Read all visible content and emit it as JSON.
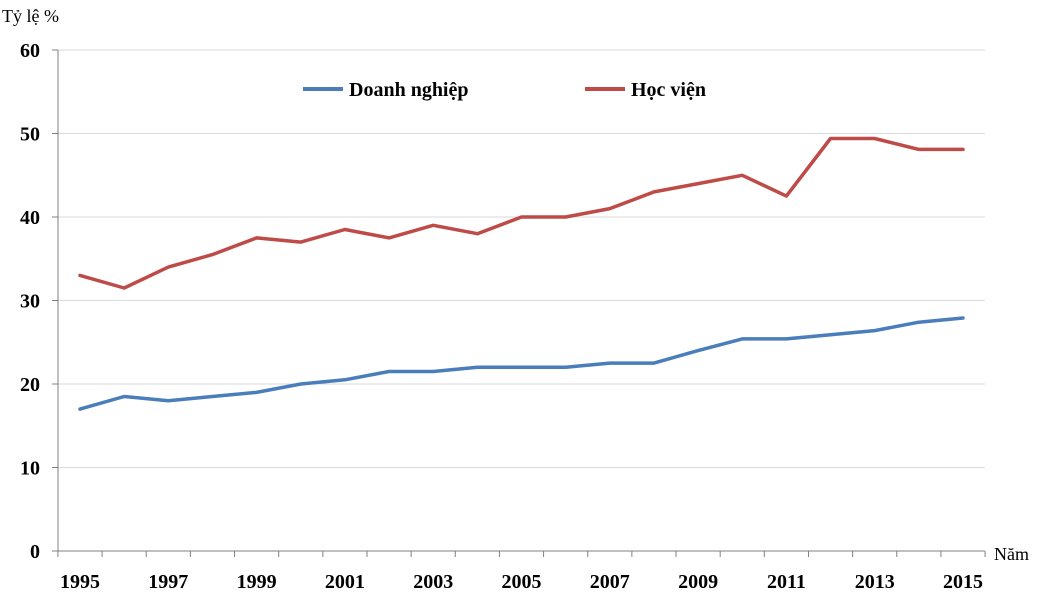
{
  "chart_data": {
    "type": "line",
    "title": "",
    "ylabel": "Tỷ lệ %",
    "xlabel": "Năm",
    "ylim": [
      0,
      60
    ],
    "yticks": [
      0,
      10,
      20,
      30,
      40,
      50,
      60
    ],
    "x": [
      1995,
      1996,
      1997,
      1998,
      1999,
      2000,
      2001,
      2002,
      2003,
      2004,
      2005,
      2006,
      2007,
      2008,
      2009,
      2010,
      2011,
      2012,
      2013,
      2014,
      2015
    ],
    "xtick_labels": [
      "1995",
      "1997",
      "1999",
      "2001",
      "2003",
      "2005",
      "2007",
      "2009",
      "2011",
      "2013",
      "2015"
    ],
    "grid": true,
    "legend_position": "top-center",
    "series": [
      {
        "name": "Doanh nghiệp",
        "color": "#4a7ebb",
        "values": [
          17,
          18.5,
          18,
          18.5,
          19,
          20,
          20.5,
          21.5,
          21.5,
          22,
          22,
          22,
          22.5,
          22.5,
          24,
          25.4,
          25.4,
          25.9,
          26.4,
          27.4,
          27.9
        ]
      },
      {
        "name": "Học viện",
        "color": "#be4b48",
        "values": [
          33,
          31.5,
          34,
          35.5,
          37.5,
          37,
          38.5,
          37.5,
          39,
          38,
          40,
          40,
          41,
          43,
          44,
          45,
          42.5,
          49.4,
          49.4,
          48.1,
          48.1
        ]
      }
    ]
  }
}
